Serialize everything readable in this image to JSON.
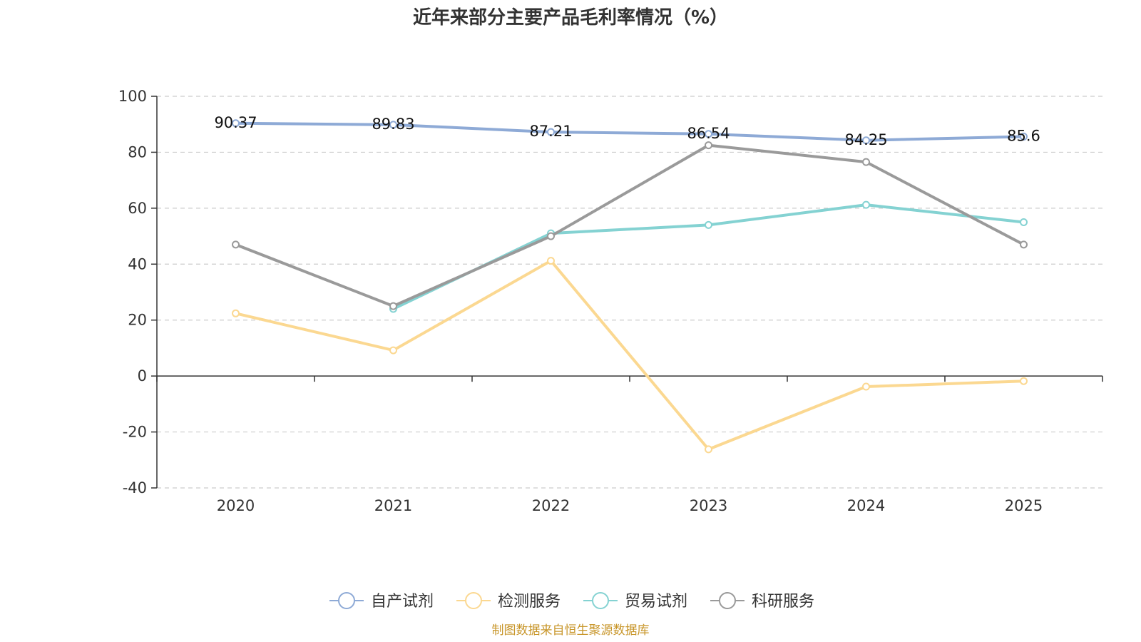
{
  "chart_data": {
    "type": "line",
    "title": "近年来部分主要产品毛利率情况（%）",
    "categories": [
      "2020",
      "2021",
      "2022",
      "2023",
      "2024",
      "2025"
    ],
    "ylim": [
      -40,
      100
    ],
    "yticks": [
      100,
      80,
      60,
      40,
      20,
      0,
      -20,
      -40
    ],
    "grid": true,
    "legend": "bottom-center",
    "series": [
      {
        "name": "自产试剂",
        "color": "#8eaad6",
        "values": [
          90.37,
          89.83,
          87.21,
          86.54,
          84.25,
          85.6
        ],
        "labels": [
          "90.37",
          "89.83",
          "87.21",
          "86.54",
          "84.25",
          "85.6"
        ]
      },
      {
        "name": "检测服务",
        "color": "#fbd891",
        "values": [
          22.4,
          9.2,
          41.2,
          -26.2,
          -3.8,
          -1.8
        ],
        "labels": null
      },
      {
        "name": "贸易试剂",
        "color": "#84d2d2",
        "values": [
          null,
          24.0,
          51.0,
          54.0,
          61.2,
          55.0
        ],
        "labels": null
      },
      {
        "name": "科研服务",
        "color": "#9a9a9a",
        "values": [
          47.0,
          25.0,
          50.0,
          82.5,
          76.5,
          47.0
        ],
        "labels": null
      }
    ],
    "source": "制图数据来自恒生聚源数据库"
  }
}
